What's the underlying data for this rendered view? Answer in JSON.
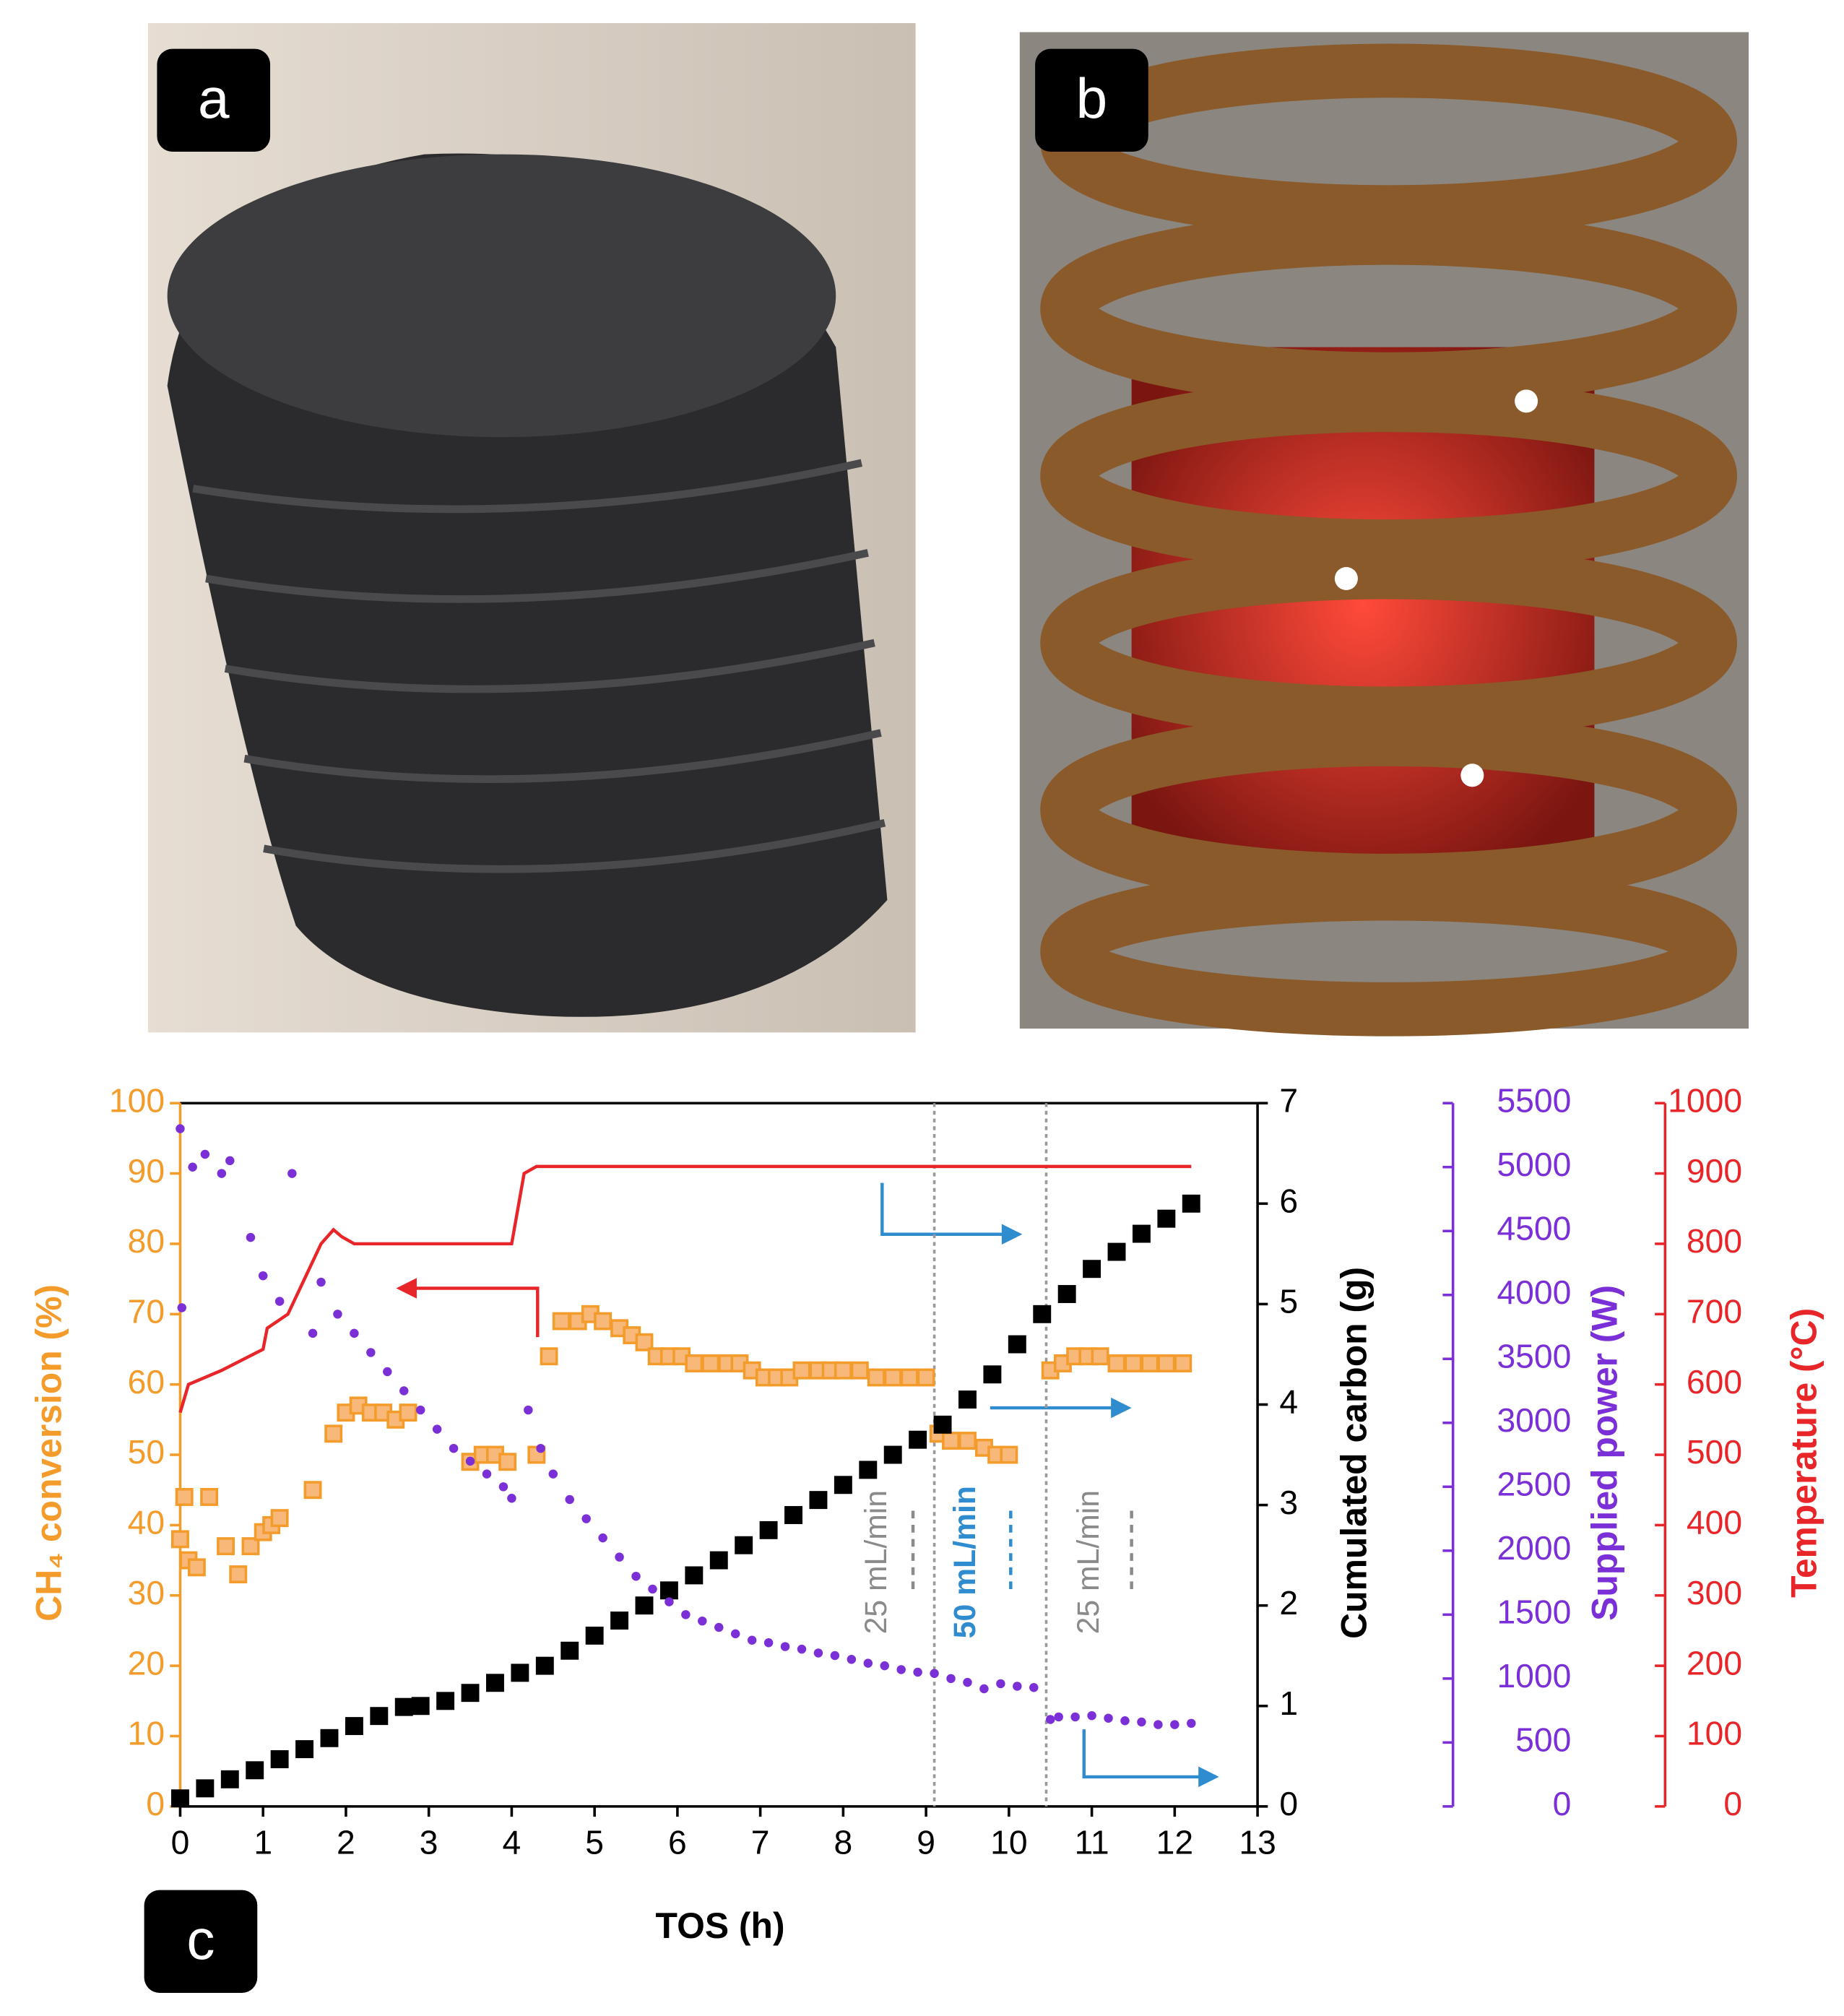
{
  "panels": {
    "a": "a",
    "b": "b",
    "c": "c"
  },
  "chart_data": {
    "type": "scatter",
    "xlabel": "TOS (h)",
    "ylabel": "CH₄ conversion (%)",
    "y2label": "Cumulated carbon (g)",
    "y3label": "Supplied power (W)",
    "y4label": "Temperature (°C)",
    "xlim": [
      0,
      13
    ],
    "xticks": [
      0,
      1,
      2,
      3,
      4,
      5,
      6,
      7,
      8,
      9,
      10,
      11,
      12,
      13
    ],
    "ylim": [
      0,
      100
    ],
    "yticks": [
      0,
      10,
      20,
      30,
      40,
      50,
      60,
      70,
      80,
      90,
      100
    ],
    "y2lim": [
      0,
      7
    ],
    "y2ticks": [
      0,
      1,
      2,
      3,
      4,
      5,
      6,
      7
    ],
    "y3lim": [
      0,
      5500
    ],
    "y3ticks": [
      0,
      500,
      1000,
      1500,
      2000,
      2500,
      3000,
      3500,
      4000,
      4500,
      5000,
      5500
    ],
    "y4lim": [
      0,
      1000
    ],
    "y4ticks": [
      0,
      100,
      200,
      300,
      400,
      500,
      600,
      700,
      800,
      900,
      1000
    ],
    "reference_lines": [
      9.1,
      10.45
    ],
    "annotations": [
      {
        "text": "25 mL/min",
        "color": "#8a8a8a"
      },
      {
        "text": "50 mL/min",
        "color": "#2f8ccf"
      },
      {
        "text": "25 mL/min",
        "color": "#8a8a8a"
      }
    ],
    "series": [
      {
        "type": "square",
        "axis": "y",
        "color": "#f39c2b",
        "x": [
          0,
          0.05,
          0.1,
          0.2,
          0.35,
          0.55,
          0.7,
          0.85,
          1.0,
          1.1,
          1.2,
          1.6,
          1.85,
          2.0,
          2.15,
          2.3,
          2.45,
          2.6,
          2.75,
          3.5,
          3.65,
          3.8,
          3.95,
          4.3,
          4.45,
          4.6,
          4.8,
          4.95,
          5.1,
          5.3,
          5.45,
          5.6,
          5.75,
          5.9,
          6.05,
          6.2,
          6.4,
          6.6,
          6.75,
          6.9,
          7.05,
          7.2,
          7.35,
          7.5,
          7.7,
          7.85,
          8.0,
          8.2,
          8.4,
          8.6,
          8.8,
          9.0,
          9.15,
          9.3,
          9.5,
          9.7,
          9.85,
          10.0,
          10.5,
          10.65,
          10.8,
          10.95,
          11.1,
          11.3,
          11.5,
          11.7,
          11.9,
          12.1
        ],
        "values": [
          38,
          44,
          35,
          34,
          44,
          37,
          33,
          37,
          39,
          40,
          41,
          45,
          53,
          56,
          57,
          56,
          56,
          55,
          56,
          49,
          50,
          50,
          49,
          50,
          64,
          69,
          69,
          70,
          69,
          68,
          67,
          66,
          64,
          64,
          64,
          63,
          63,
          63,
          63,
          62,
          61,
          61,
          61,
          62,
          62,
          62,
          62,
          62,
          61,
          61,
          61,
          61,
          53,
          52,
          52,
          51,
          50,
          50,
          62,
          63,
          64,
          64,
          64,
          63,
          63,
          63,
          63,
          63
        ]
      },
      {
        "type": "square",
        "axis": "y2",
        "color": "#000000",
        "x": [
          0,
          0.3,
          0.6,
          0.9,
          1.2,
          1.5,
          1.8,
          2.1,
          2.4,
          2.7,
          2.9,
          3.2,
          3.5,
          3.8,
          4.1,
          4.4,
          4.7,
          5.0,
          5.3,
          5.6,
          5.9,
          6.2,
          6.5,
          6.8,
          7.1,
          7.4,
          7.7,
          8.0,
          8.3,
          8.6,
          8.9,
          9.2,
          9.5,
          9.8,
          10.1,
          10.4,
          10.7,
          11.0,
          11.3,
          11.6,
          11.9,
          12.2
        ],
        "values": [
          0.08,
          0.18,
          0.27,
          0.36,
          0.47,
          0.57,
          0.68,
          0.8,
          0.9,
          0.99,
          1.0,
          1.05,
          1.13,
          1.23,
          1.33,
          1.4,
          1.55,
          1.7,
          1.85,
          2.0,
          2.15,
          2.3,
          2.45,
          2.6,
          2.75,
          2.9,
          3.05,
          3.2,
          3.35,
          3.5,
          3.65,
          3.8,
          4.05,
          4.3,
          4.6,
          4.9,
          5.1,
          5.35,
          5.52,
          5.7,
          5.85,
          6.0
        ]
      },
      {
        "type": "dot",
        "axis": "y3",
        "color": "#7b2fd6",
        "x": [
          0,
          0.02,
          0.15,
          0.3,
          0.5,
          0.6,
          0.85,
          1.0,
          1.2,
          1.35,
          1.6,
          1.7,
          1.9,
          2.1,
          2.3,
          2.5,
          2.7,
          2.9,
          3.1,
          3.3,
          3.5,
          3.7,
          3.9,
          4.0,
          4.2,
          4.35,
          4.5,
          4.7,
          4.9,
          5.1,
          5.3,
          5.5,
          5.7,
          5.9,
          6.1,
          6.3,
          6.5,
          6.7,
          6.9,
          7.1,
          7.3,
          7.5,
          7.7,
          7.9,
          8.1,
          8.3,
          8.5,
          8.7,
          8.9,
          9.1,
          9.3,
          9.5,
          9.7,
          9.9,
          10.1,
          10.3,
          10.5,
          10.6,
          10.8,
          11.0,
          11.2,
          11.4,
          11.6,
          11.8,
          12.0,
          12.2
        ],
        "values": [
          5300,
          3900,
          5000,
          5100,
          4950,
          5050,
          4450,
          4150,
          3950,
          4950,
          3700,
          4100,
          3850,
          3700,
          3550,
          3400,
          3250,
          3100,
          2950,
          2800,
          2700,
          2600,
          2500,
          2410,
          3100,
          2800,
          2600,
          2400,
          2250,
          2100,
          1950,
          1800,
          1700,
          1600,
          1500,
          1450,
          1400,
          1350,
          1300,
          1280,
          1250,
          1230,
          1200,
          1180,
          1150,
          1120,
          1100,
          1070,
          1050,
          1040,
          1000,
          970,
          920,
          960,
          940,
          930,
          680,
          700,
          700,
          710,
          690,
          670,
          660,
          640,
          640,
          650
        ]
      },
      {
        "type": "line",
        "axis": "y4",
        "color": "#e8262a",
        "x": [
          0,
          0.1,
          0.5,
          1.0,
          1.05,
          1.3,
          1.5,
          1.7,
          1.85,
          1.95,
          2.1,
          4.0,
          4.15,
          4.3,
          5.0,
          12.2
        ],
        "values": [
          560,
          600,
          620,
          650,
          680,
          700,
          750,
          800,
          820,
          810,
          800,
          800,
          900,
          910,
          910,
          910
        ]
      }
    ]
  }
}
